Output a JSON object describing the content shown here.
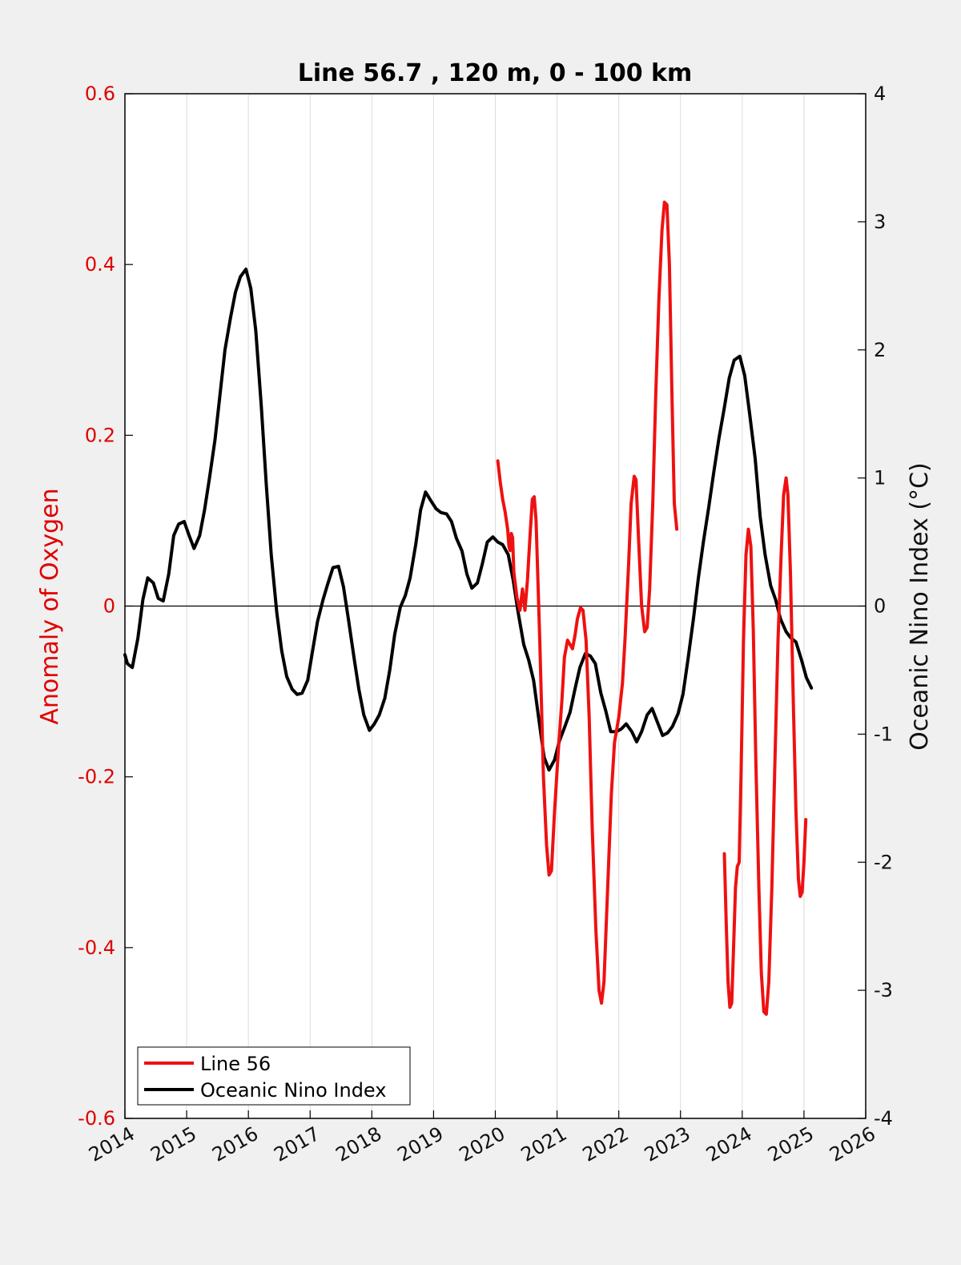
{
  "chart_data": {
    "type": "line",
    "title": "Line 56.7 , 120 m, 0 - 100 km",
    "xlabel": "",
    "ylabel_left": "Anomaly of Oxygen",
    "ylabel_right": "Oceanic Nino Index (°C)",
    "xlim": [
      2014,
      2026
    ],
    "ylim_left": [
      -0.6,
      0.6
    ],
    "ylim_right": [
      -4,
      4
    ],
    "x_ticks": [
      "2014",
      "2015",
      "2016",
      "2017",
      "2018",
      "2019",
      "2020",
      "2021",
      "2022",
      "2023",
      "2024",
      "2025",
      "2026"
    ],
    "y_ticks_left": [
      "0.6",
      "0.4",
      "0.2",
      "0",
      "-0.2",
      "-0.4",
      "-0.6"
    ],
    "y_ticks_right": [
      "4",
      "3",
      "2",
      "1",
      "0",
      "-1",
      "-2",
      "-3",
      "-4"
    ],
    "grid": "vertical",
    "zero_line": true,
    "legend_position": "bottom-left",
    "colors": {
      "line56": "#ee1111",
      "oni": "#000000",
      "left_axis": "#e00000",
      "background": "#f0f0f0",
      "plot_bg": "#ffffff"
    },
    "series": [
      {
        "name": "Line 56",
        "axis": "left",
        "segments": [
          [
            [
              2020.04,
              0.17
            ],
            [
              2020.08,
              0.145
            ],
            [
              2020.12,
              0.125
            ],
            [
              2020.16,
              0.11
            ],
            [
              2020.2,
              0.09
            ],
            [
              2020.22,
              0.07
            ],
            [
              2020.24,
              0.065
            ],
            [
              2020.26,
              0.085
            ],
            [
              2020.28,
              0.08
            ],
            [
              2020.3,
              0.04
            ],
            [
              2020.35,
              0.01
            ],
            [
              2020.4,
              -0.005
            ],
            [
              2020.44,
              0.02
            ],
            [
              2020.48,
              -0.005
            ],
            [
              2020.52,
              0.03
            ],
            [
              2020.56,
              0.08
            ],
            [
              2020.6,
              0.125
            ],
            [
              2020.63,
              0.128
            ],
            [
              2020.66,
              0.1
            ],
            [
              2020.72,
              -0.04
            ],
            [
              2020.78,
              -0.2
            ],
            [
              2020.83,
              -0.28
            ],
            [
              2020.87,
              -0.315
            ],
            [
              2020.91,
              -0.31
            ],
            [
              2020.96,
              -0.24
            ],
            [
              2021.02,
              -0.17
            ],
            [
              2021.08,
              -0.11
            ],
            [
              2021.12,
              -0.06
            ],
            [
              2021.17,
              -0.04
            ],
            [
              2021.21,
              -0.045
            ],
            [
              2021.25,
              -0.05
            ],
            [
              2021.29,
              -0.035
            ],
            [
              2021.33,
              -0.015
            ],
            [
              2021.38,
              -0.002
            ],
            [
              2021.42,
              -0.005
            ],
            [
              2021.47,
              -0.04
            ],
            [
              2021.52,
              -0.13
            ],
            [
              2021.57,
              -0.26
            ],
            [
              2021.63,
              -0.38
            ],
            [
              2021.68,
              -0.45
            ],
            [
              2021.72,
              -0.465
            ],
            [
              2021.76,
              -0.44
            ],
            [
              2021.82,
              -0.33
            ],
            [
              2021.88,
              -0.22
            ],
            [
              2021.93,
              -0.16
            ],
            [
              2022.0,
              -0.13
            ],
            [
              2022.06,
              -0.09
            ],
            [
              2022.1,
              -0.04
            ],
            [
              2022.16,
              0.05
            ],
            [
              2022.2,
              0.12
            ],
            [
              2022.25,
              0.152
            ],
            [
              2022.28,
              0.148
            ],
            [
              2022.32,
              0.08
            ],
            [
              2022.37,
              0.0
            ],
            [
              2022.42,
              -0.03
            ],
            [
              2022.46,
              -0.025
            ],
            [
              2022.5,
              0.02
            ],
            [
              2022.55,
              0.12
            ],
            [
              2022.6,
              0.25
            ],
            [
              2022.65,
              0.36
            ],
            [
              2022.7,
              0.44
            ],
            [
              2022.74,
              0.473
            ],
            [
              2022.78,
              0.47
            ],
            [
              2022.82,
              0.4
            ],
            [
              2022.86,
              0.25
            ],
            [
              2022.9,
              0.12
            ],
            [
              2022.94,
              0.09
            ]
          ],
          [
            [
              2023.71,
              -0.29
            ],
            [
              2023.74,
              -0.37
            ],
            [
              2023.77,
              -0.44
            ],
            [
              2023.8,
              -0.47
            ],
            [
              2023.83,
              -0.465
            ],
            [
              2023.86,
              -0.4
            ],
            [
              2023.89,
              -0.33
            ],
            [
              2023.92,
              -0.305
            ],
            [
              2023.95,
              -0.3
            ],
            [
              2023.98,
              -0.2
            ],
            [
              2024.02,
              -0.04
            ],
            [
              2024.06,
              0.06
            ],
            [
              2024.1,
              0.09
            ],
            [
              2024.14,
              0.07
            ],
            [
              2024.18,
              -0.03
            ],
            [
              2024.22,
              -0.18
            ],
            [
              2024.27,
              -0.33
            ],
            [
              2024.31,
              -0.43
            ],
            [
              2024.35,
              -0.475
            ],
            [
              2024.39,
              -0.478
            ],
            [
              2024.43,
              -0.44
            ],
            [
              2024.48,
              -0.33
            ],
            [
              2024.53,
              -0.18
            ],
            [
              2024.58,
              -0.04
            ],
            [
              2024.63,
              0.06
            ],
            [
              2024.67,
              0.13
            ],
            [
              2024.71,
              0.15
            ],
            [
              2024.74,
              0.13
            ],
            [
              2024.78,
              0.04
            ],
            [
              2024.83,
              -0.12
            ],
            [
              2024.87,
              -0.24
            ],
            [
              2024.91,
              -0.32
            ],
            [
              2024.94,
              -0.34
            ],
            [
              2024.97,
              -0.335
            ],
            [
              2025.0,
              -0.3
            ],
            [
              2025.03,
              -0.25
            ]
          ]
        ]
      },
      {
        "name": "Oceanic Nino Index",
        "axis": "right",
        "segments": [
          [
            [
              2014.0,
              -0.38
            ],
            [
              2014.04,
              -0.45
            ],
            [
              2014.12,
              -0.48
            ],
            [
              2014.21,
              -0.25
            ],
            [
              2014.29,
              0.05
            ],
            [
              2014.37,
              0.22
            ],
            [
              2014.46,
              0.18
            ],
            [
              2014.54,
              0.06
            ],
            [
              2014.62,
              0.04
            ],
            [
              2014.71,
              0.25
            ],
            [
              2014.79,
              0.55
            ],
            [
              2014.87,
              0.64
            ],
            [
              2014.96,
              0.66
            ],
            [
              2015.04,
              0.55
            ],
            [
              2015.12,
              0.45
            ],
            [
              2015.21,
              0.55
            ],
            [
              2015.29,
              0.75
            ],
            [
              2015.37,
              1.0
            ],
            [
              2015.46,
              1.3
            ],
            [
              2015.54,
              1.65
            ],
            [
              2015.62,
              2.0
            ],
            [
              2015.71,
              2.25
            ],
            [
              2015.79,
              2.45
            ],
            [
              2015.87,
              2.57
            ],
            [
              2015.96,
              2.63
            ],
            [
              2016.04,
              2.48
            ],
            [
              2016.12,
              2.15
            ],
            [
              2016.21,
              1.55
            ],
            [
              2016.29,
              0.95
            ],
            [
              2016.37,
              0.4
            ],
            [
              2016.46,
              -0.05
            ],
            [
              2016.54,
              -0.35
            ],
            [
              2016.62,
              -0.55
            ],
            [
              2016.71,
              -0.65
            ],
            [
              2016.79,
              -0.69
            ],
            [
              2016.87,
              -0.68
            ],
            [
              2016.96,
              -0.58
            ],
            [
              2017.04,
              -0.35
            ],
            [
              2017.12,
              -0.12
            ],
            [
              2017.21,
              0.05
            ],
            [
              2017.29,
              0.18
            ],
            [
              2017.37,
              0.3
            ],
            [
              2017.46,
              0.31
            ],
            [
              2017.54,
              0.15
            ],
            [
              2017.62,
              -0.1
            ],
            [
              2017.71,
              -0.4
            ],
            [
              2017.79,
              -0.65
            ],
            [
              2017.87,
              -0.85
            ],
            [
              2017.96,
              -0.97
            ],
            [
              2018.04,
              -0.92
            ],
            [
              2018.12,
              -0.85
            ],
            [
              2018.21,
              -0.72
            ],
            [
              2018.29,
              -0.5
            ],
            [
              2018.37,
              -0.22
            ],
            [
              2018.46,
              -0.01
            ],
            [
              2018.54,
              0.08
            ],
            [
              2018.62,
              0.22
            ],
            [
              2018.71,
              0.48
            ],
            [
              2018.79,
              0.75
            ],
            [
              2018.87,
              0.89
            ],
            [
              2018.96,
              0.82
            ],
            [
              2019.04,
              0.76
            ],
            [
              2019.12,
              0.73
            ],
            [
              2019.21,
              0.72
            ],
            [
              2019.29,
              0.66
            ],
            [
              2019.37,
              0.53
            ],
            [
              2019.46,
              0.43
            ],
            [
              2019.54,
              0.25
            ],
            [
              2019.62,
              0.14
            ],
            [
              2019.71,
              0.18
            ],
            [
              2019.79,
              0.33
            ],
            [
              2019.87,
              0.5
            ],
            [
              2019.96,
              0.54
            ],
            [
              2020.04,
              0.5
            ],
            [
              2020.12,
              0.48
            ],
            [
              2020.21,
              0.4
            ],
            [
              2020.29,
              0.2
            ],
            [
              2020.37,
              -0.05
            ],
            [
              2020.46,
              -0.3
            ],
            [
              2020.54,
              -0.42
            ],
            [
              2020.62,
              -0.58
            ],
            [
              2020.71,
              -0.9
            ],
            [
              2020.79,
              -1.18
            ],
            [
              2020.87,
              -1.28
            ],
            [
              2020.96,
              -1.2
            ],
            [
              2021.04,
              -1.05
            ],
            [
              2021.12,
              -0.95
            ],
            [
              2021.21,
              -0.83
            ],
            [
              2021.29,
              -0.65
            ],
            [
              2021.37,
              -0.48
            ],
            [
              2021.46,
              -0.37
            ],
            [
              2021.54,
              -0.39
            ],
            [
              2021.62,
              -0.45
            ],
            [
              2021.71,
              -0.68
            ],
            [
              2021.79,
              -0.82
            ],
            [
              2021.87,
              -0.98
            ],
            [
              2021.96,
              -0.98
            ],
            [
              2022.04,
              -0.96
            ],
            [
              2022.12,
              -0.92
            ],
            [
              2022.21,
              -0.98
            ],
            [
              2022.29,
              -1.06
            ],
            [
              2022.37,
              -0.98
            ],
            [
              2022.46,
              -0.85
            ],
            [
              2022.54,
              -0.8
            ],
            [
              2022.62,
              -0.9
            ],
            [
              2022.71,
              -1.01
            ],
            [
              2022.79,
              -0.99
            ],
            [
              2022.87,
              -0.94
            ],
            [
              2022.96,
              -0.84
            ],
            [
              2023.04,
              -0.69
            ],
            [
              2023.12,
              -0.42
            ],
            [
              2023.21,
              -0.1
            ],
            [
              2023.29,
              0.22
            ],
            [
              2023.37,
              0.5
            ],
            [
              2023.46,
              0.78
            ],
            [
              2023.54,
              1.05
            ],
            [
              2023.62,
              1.3
            ],
            [
              2023.71,
              1.55
            ],
            [
              2023.79,
              1.78
            ],
            [
              2023.87,
              1.92
            ],
            [
              2023.96,
              1.95
            ],
            [
              2024.04,
              1.8
            ],
            [
              2024.12,
              1.5
            ],
            [
              2024.21,
              1.15
            ],
            [
              2024.29,
              0.7
            ],
            [
              2024.37,
              0.4
            ],
            [
              2024.46,
              0.16
            ],
            [
              2024.54,
              0.05
            ],
            [
              2024.62,
              -0.1
            ],
            [
              2024.71,
              -0.2
            ],
            [
              2024.79,
              -0.25
            ],
            [
              2024.87,
              -0.28
            ],
            [
              2024.96,
              -0.42
            ],
            [
              2025.04,
              -0.56
            ],
            [
              2025.12,
              -0.64
            ]
          ]
        ]
      }
    ]
  }
}
